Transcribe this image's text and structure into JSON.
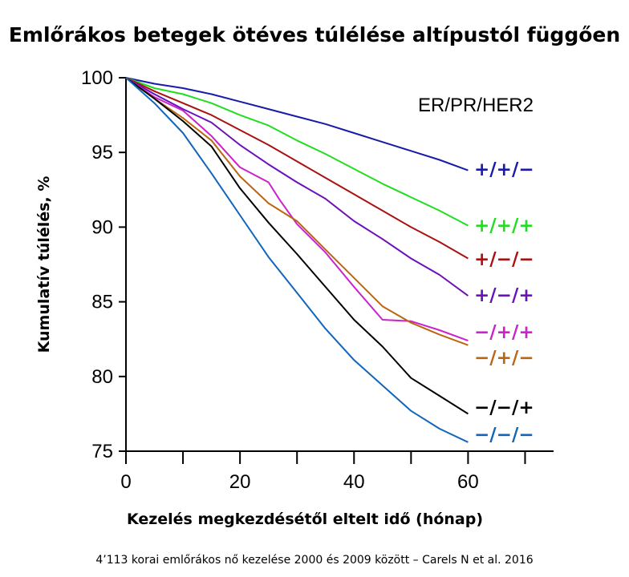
{
  "chart_data": {
    "type": "line",
    "title": "Emlőrákos betegek ötéves túlélése altípustól függően",
    "xlabel": "Kezelés megkezdésétől eltelt idő (hónap)",
    "ylabel": "Kumulatív túlélés,  %",
    "legend_title": "ER/PR/HER2",
    "caption": "4’113 korai emlőrákos nő kezelése 2000 és 2009 között – Carels N et al. 2016",
    "xlim": [
      0,
      75
    ],
    "ylim": [
      75,
      100
    ],
    "x_ticks": [
      0,
      20,
      40,
      60
    ],
    "x_minor_ticks": [
      10,
      30,
      50,
      70
    ],
    "y_ticks": [
      75,
      80,
      85,
      90,
      95,
      100
    ],
    "grid": false,
    "legend_placement": "right, at line ends",
    "series": [
      {
        "name": "+/+/−",
        "color": "#1a1aaa",
        "x": [
          0,
          5,
          10,
          15,
          20,
          25,
          30,
          35,
          40,
          45,
          50,
          55,
          60
        ],
        "y": [
          100,
          99.6,
          99.3,
          98.9,
          98.4,
          97.9,
          97.4,
          96.9,
          96.3,
          95.7,
          95.1,
          94.5,
          93.8
        ]
      },
      {
        "name": "+/+/+",
        "color": "#22dd22",
        "x": [
          0,
          5,
          10,
          15,
          20,
          25,
          30,
          35,
          40,
          45,
          50,
          55,
          60
        ],
        "y": [
          100,
          99.3,
          98.9,
          98.3,
          97.5,
          96.8,
          95.8,
          94.9,
          93.9,
          92.9,
          92.0,
          91.1,
          90.1
        ]
      },
      {
        "name": "+/−/−",
        "color": "#aa1111",
        "x": [
          0,
          5,
          10,
          15,
          20,
          25,
          30,
          35,
          40,
          45,
          50,
          55,
          60
        ],
        "y": [
          100,
          99.1,
          98.3,
          97.5,
          96.5,
          95.5,
          94.4,
          93.3,
          92.2,
          91.1,
          90.0,
          89.0,
          87.9
        ]
      },
      {
        "name": "+/−/+",
        "color": "#6a11bb",
        "x": [
          0,
          5,
          10,
          15,
          20,
          25,
          30,
          35,
          40,
          45,
          50,
          55,
          60
        ],
        "y": [
          100,
          98.9,
          97.9,
          97.0,
          95.5,
          94.2,
          93.0,
          91.9,
          90.4,
          89.2,
          87.9,
          86.8,
          85.4
        ]
      },
      {
        "name": "−/+/+",
        "color": "#cc22cc",
        "x": [
          0,
          5,
          10,
          15,
          20,
          25,
          27,
          30,
          35,
          40,
          45,
          50,
          55,
          60
        ],
        "y": [
          100,
          98.7,
          97.8,
          96.1,
          94.0,
          93.0,
          91.8,
          90.2,
          88.3,
          86.0,
          83.8,
          83.7,
          83.1,
          82.4
        ]
      },
      {
        "name": "−/+/−",
        "color": "#bb6611",
        "x": [
          0,
          5,
          10,
          15,
          20,
          25,
          30,
          35,
          40,
          45,
          50,
          55,
          60
        ],
        "y": [
          100,
          98.6,
          97.3,
          95.8,
          93.4,
          91.6,
          90.4,
          88.5,
          86.6,
          84.7,
          83.6,
          82.8,
          82.1
        ]
      },
      {
        "name": "−/−/+",
        "color": "#000000",
        "x": [
          0,
          5,
          10,
          15,
          20,
          25,
          30,
          35,
          40,
          45,
          50,
          55,
          60
        ],
        "y": [
          100,
          98.6,
          97.1,
          95.4,
          92.6,
          90.3,
          88.2,
          86.0,
          83.8,
          82.0,
          79.9,
          78.7,
          77.5
        ]
      },
      {
        "name": "−/−/−",
        "color": "#1166bb",
        "x": [
          0,
          5,
          10,
          15,
          20,
          25,
          30,
          35,
          40,
          45,
          50,
          55,
          60
        ],
        "y": [
          100,
          98.3,
          96.3,
          93.6,
          90.8,
          88.0,
          85.6,
          83.2,
          81.1,
          79.4,
          77.7,
          76.5,
          75.6
        ]
      }
    ]
  }
}
